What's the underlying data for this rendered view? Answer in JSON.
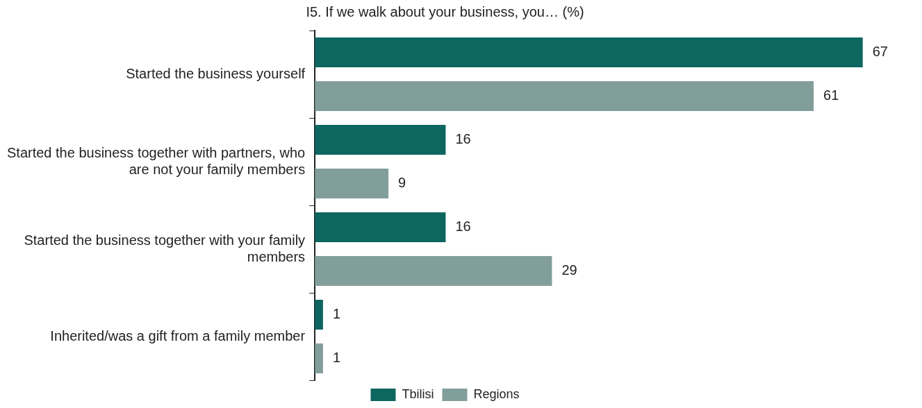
{
  "chart_data": {
    "type": "bar",
    "orientation": "horizontal",
    "title": "I5. If we walk about your business, you… (%)",
    "categories": [
      "Started the business yourself",
      "Started the business together with partners, who are not your family members",
      "Started the business together with your family members",
      "Inherited/was a gift from a family member"
    ],
    "series": [
      {
        "name": "Tbilisi",
        "color": "#0e6660",
        "values": [
          67,
          16,
          16,
          1
        ]
      },
      {
        "name": "Regions",
        "color": "#819e9b",
        "values": [
          61,
          9,
          29,
          1
        ]
      }
    ],
    "data_labels": true,
    "legend": "bottom",
    "grid": false,
    "tick_labels": "y"
  }
}
